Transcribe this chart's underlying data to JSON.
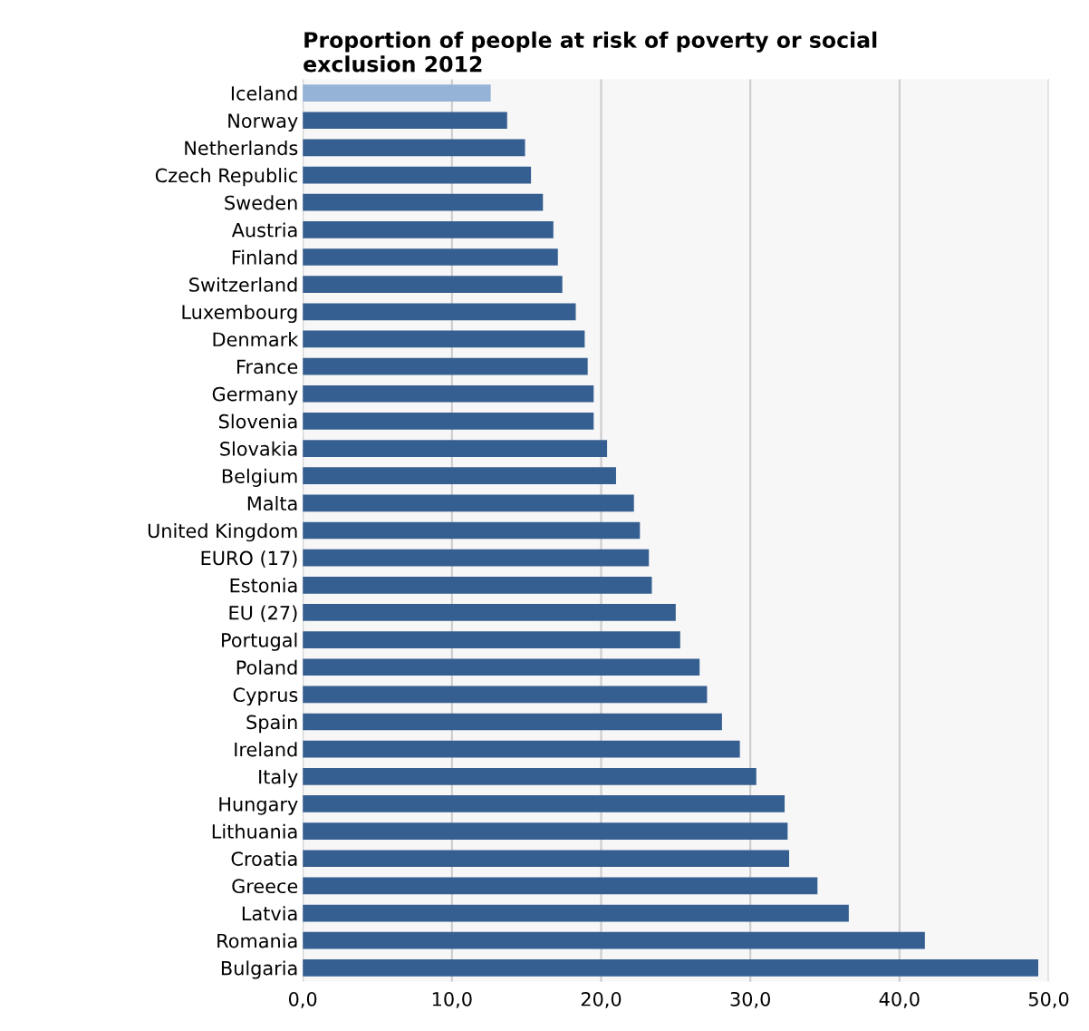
{
  "chart_data": {
    "type": "bar",
    "orientation": "horizontal",
    "title": "Proportion of people at risk of poverty or social\nexclusion 2012",
    "categories": [
      "Iceland",
      "Norway",
      "Netherlands",
      "Czech Republic",
      "Sweden",
      "Austria",
      "Finland",
      "Switzerland",
      "Luxembourg",
      "Denmark",
      "France",
      "Germany",
      "Slovenia",
      "Slovakia",
      "Belgium",
      "Malta",
      "United Kingdom",
      "EURO (17)",
      "Estonia",
      "EU (27)",
      "Portugal",
      "Poland",
      "Cyprus",
      "Spain",
      "Ireland",
      "Italy",
      "Hungary",
      "Lithuania",
      "Croatia",
      "Greece",
      "Latvia",
      "Romania",
      "Bulgaria"
    ],
    "values": [
      12.6,
      13.7,
      14.9,
      15.3,
      16.1,
      16.8,
      17.1,
      17.4,
      18.3,
      18.9,
      19.1,
      19.5,
      19.5,
      20.4,
      21.0,
      22.2,
      22.6,
      23.2,
      23.4,
      25.0,
      25.3,
      26.6,
      27.1,
      28.1,
      29.3,
      30.4,
      32.3,
      32.5,
      32.6,
      34.5,
      36.6,
      41.7,
      49.3
    ],
    "colors": [
      "#95b3d7",
      "#365f91",
      "#365f91",
      "#365f91",
      "#365f91",
      "#365f91",
      "#365f91",
      "#365f91",
      "#365f91",
      "#365f91",
      "#365f91",
      "#365f91",
      "#365f91",
      "#365f91",
      "#365f91",
      "#365f91",
      "#365f91",
      "#365f91",
      "#365f91",
      "#365f91",
      "#365f91",
      "#365f91",
      "#365f91",
      "#365f91",
      "#365f91",
      "#365f91",
      "#365f91",
      "#365f91",
      "#365f91",
      "#365f91",
      "#365f91",
      "#365f91",
      "#365f91"
    ],
    "xlim": [
      0,
      50
    ],
    "xticks": [
      {
        "value": 0,
        "label": "0,0"
      },
      {
        "value": 10,
        "label": "10,0"
      },
      {
        "value": 20,
        "label": "20,0"
      },
      {
        "value": 30,
        "label": "30,0"
      },
      {
        "value": 40,
        "label": "40,0"
      },
      {
        "value": 50,
        "label": "50,0"
      }
    ],
    "grid": "x"
  }
}
